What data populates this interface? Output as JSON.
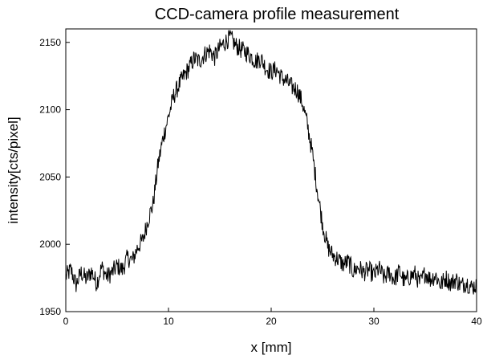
{
  "chart_data": {
    "type": "line",
    "title": "CCD-camera profile measurement",
    "xlabel": "x [mm]",
    "ylabel": "intensity[cts/pixel]",
    "xlim": [
      0,
      40
    ],
    "ylim": [
      1950,
      2160
    ],
    "xticks": [
      0,
      10,
      20,
      30,
      40
    ],
    "yticks": [
      1950,
      2000,
      2050,
      2100,
      2150
    ],
    "grid": false,
    "legend": "none",
    "line_color": "#000000",
    "series": [
      {
        "x": [
          0,
          0.5,
          1,
          1.5,
          2,
          2.5,
          3,
          3.5,
          4,
          4.5,
          5,
          5.5,
          6,
          6.5,
          7,
          7.5,
          8,
          8.5,
          9,
          9.5,
          10,
          10.5,
          11,
          11.5,
          12,
          12.5,
          13,
          13.5,
          14,
          14.5,
          15,
          15.5,
          16,
          16.5,
          17,
          17.5,
          18,
          18.5,
          19,
          19.5,
          20,
          20.5,
          21,
          21.5,
          22,
          22.5,
          23,
          23.5,
          24,
          24.5,
          25,
          25.5,
          26,
          26.5,
          27,
          27.5,
          28,
          28.5,
          29,
          29.5,
          30,
          30.5,
          31,
          31.5,
          32,
          32.5,
          33,
          33.5,
          34,
          34.5,
          35,
          35.5,
          36,
          36.5,
          37,
          37.5,
          38,
          38.5,
          39,
          39.5,
          40
        ],
        "values": [
          1976,
          1981,
          1970,
          1979,
          1974,
          1980,
          1971,
          1983,
          1976,
          1979,
          1984,
          1981,
          1990,
          1988,
          1998,
          2003,
          2018,
          2030,
          2060,
          2080,
          2095,
          2110,
          2118,
          2125,
          2131,
          2138,
          2136,
          2141,
          2144,
          2139,
          2146,
          2150,
          2154,
          2148,
          2145,
          2143,
          2140,
          2136,
          2138,
          2131,
          2128,
          2130,
          2124,
          2121,
          2117,
          2115,
          2106,
          2090,
          2068,
          2040,
          2015,
          1998,
          1992,
          1989,
          1985,
          1987,
          1980,
          1983,
          1979,
          1981,
          1977,
          1982,
          1975,
          1979,
          1974,
          1980,
          1972,
          1976,
          1978,
          1971,
          1979,
          1974,
          1977,
          1970,
          1975,
          1971,
          1974,
          1969,
          1972,
          1968,
          1970
        ]
      }
    ]
  }
}
